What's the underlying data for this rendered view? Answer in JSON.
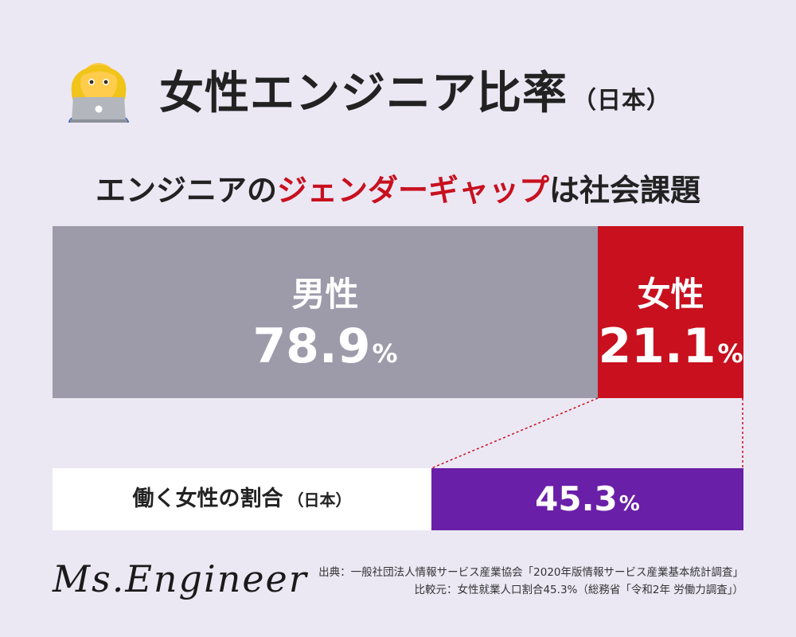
{
  "title": "女性エンジニア比率",
  "title_suffix": "（日本）",
  "subtitle": {
    "part1": "エンジニアの",
    "highlight": "ジェンダーギャップ",
    "part2": "は社会課題"
  },
  "chart_data": {
    "type": "bar",
    "orientation": "horizontal-stacked",
    "categories": [
      "男性",
      "女性"
    ],
    "values": [
      78.9,
      21.1
    ],
    "unit": "%",
    "colors": [
      "#9d9aaa",
      "#c8101e"
    ],
    "comparison": {
      "label": "働く女性の割合",
      "label_suffix": "（日本）",
      "value": 45.3,
      "unit": "%",
      "color": "#6a1fa8"
    }
  },
  "icon": "woman-technologist-icon",
  "brand": "Ms.Engineer",
  "source": {
    "line1": "出典：一般社団法人情報サービス産業協会「2020年版情報サービス産業基本統計調査」",
    "line2": "比較元：女性就業人口割合45.3%（総務省「令和2年 労働力調査」）"
  },
  "colors": {
    "background": "#ebe8f4",
    "male": "#9d9aaa",
    "female": "#c8101e",
    "comparison": "#6a1fa8",
    "accent_text": "#c8101e"
  }
}
